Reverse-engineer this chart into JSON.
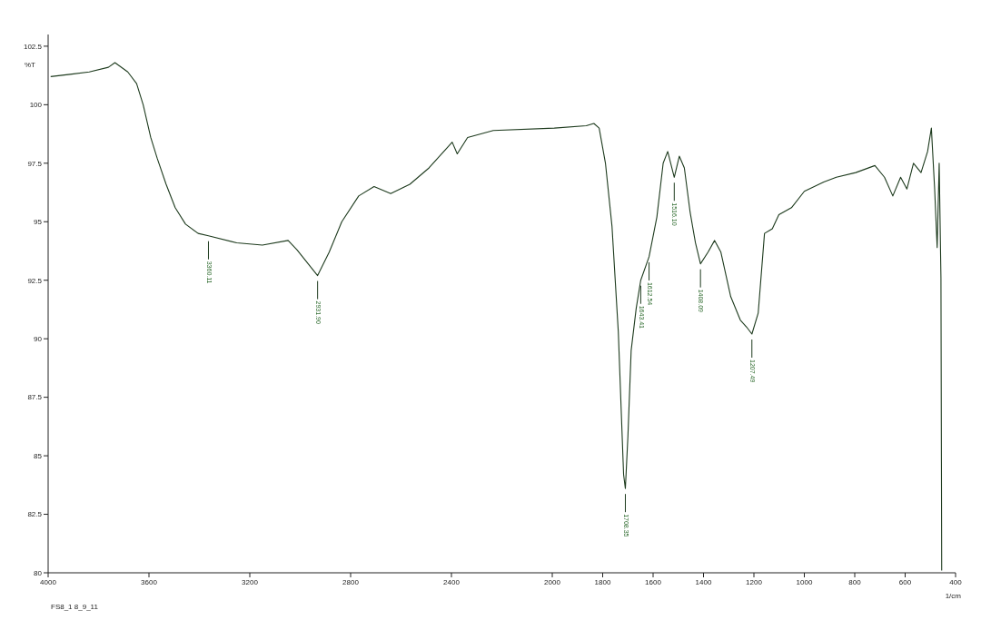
{
  "chart_data": {
    "type": "line",
    "xlabel": "1/cm",
    "ylabel": "%T",
    "x": [
      3990,
      3913,
      3837,
      3761,
      3735,
      3684,
      3649,
      3623,
      3593,
      3567,
      3532,
      3496,
      3455,
      3405,
      3364,
      3252,
      3150,
      3048,
      3013,
      2931,
      2885,
      2835,
      2768,
      2707,
      2641,
      2565,
      2489,
      2397,
      2377,
      2336,
      2234,
      1992,
      1865,
      1835,
      1814,
      1789,
      1763,
      1738,
      1717,
      1710,
      1700,
      1687,
      1667,
      1649,
      1616,
      1585,
      1560,
      1542,
      1516,
      1496,
      1476,
      1453,
      1432,
      1412,
      1382,
      1356,
      1331,
      1292,
      1254,
      1229,
      1208,
      1183,
      1158,
      1127,
      1101,
      1051,
      1000,
      923,
      873,
      796,
      720,
      682,
      649,
      618,
      593,
      567,
      537,
      511,
      496,
      483,
      473,
      465,
      458,
      455
    ],
    "series": [
      {
        "color": "#1e3b1e",
        "values": [
          101.2,
          101.3,
          101.4,
          101.6,
          101.8,
          101.4,
          100.9,
          100.0,
          98.6,
          97.7,
          96.6,
          95.6,
          94.9,
          94.5,
          94.4,
          94.1,
          94.0,
          94.2,
          93.8,
          92.7,
          93.7,
          95.0,
          96.1,
          96.5,
          96.2,
          96.6,
          97.3,
          98.4,
          97.9,
          98.6,
          98.9,
          99.0,
          99.1,
          99.2,
          99.0,
          97.5,
          94.8,
          90.3,
          84.2,
          83.6,
          85.8,
          89.5,
          91.3,
          92.5,
          93.5,
          95.2,
          97.5,
          98.0,
          96.9,
          97.8,
          97.3,
          95.4,
          94.1,
          93.2,
          93.7,
          94.2,
          93.7,
          91.8,
          90.8,
          90.5,
          90.2,
          91.1,
          94.5,
          94.7,
          95.3,
          95.6,
          96.3,
          96.7,
          96.9,
          97.1,
          97.4,
          96.9,
          96.1,
          96.9,
          96.4,
          97.5,
          97.1,
          98.0,
          99.0,
          96.4,
          93.9,
          97.5,
          92.6,
          80.1
        ]
      }
    ],
    "xlim": [
      4000,
      400
    ],
    "xticks": [
      4000,
      3600,
      3200,
      2800,
      2400,
      2000,
      1800,
      1600,
      1400,
      1200,
      1000,
      800,
      600,
      400
    ],
    "ylim": [
      80,
      103
    ],
    "yticks": [
      80,
      82.5,
      85,
      87.5,
      90,
      92.5,
      95,
      97.5,
      100,
      102.5
    ],
    "grid": false,
    "legend": false,
    "marker": "none",
    "line_style": "solid",
    "annotations": [
      {
        "text": "3360.11",
        "x": 3364,
        "y": 94.4
      },
      {
        "text": "2931.90",
        "x": 2931,
        "y": 92.7
      },
      {
        "text": "1708.35",
        "x": 1710,
        "y": 83.6
      },
      {
        "text": "1643.41",
        "x": 1649,
        "y": 92.5
      },
      {
        "text": "1612.54",
        "x": 1616,
        "y": 93.5
      },
      {
        "text": "1516.10",
        "x": 1516,
        "y": 96.9
      },
      {
        "text": "1408.09",
        "x": 1412,
        "y": 93.2
      },
      {
        "text": "1207.49",
        "x": 1208,
        "y": 90.2
      },
      "FS8_1 8_9_11"
    ]
  }
}
